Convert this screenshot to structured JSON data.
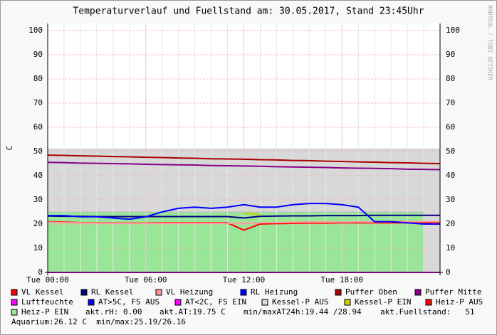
{
  "chart_data": {
    "type": "line",
    "title": "Temperaturverlauf und Fuellstand am: 30.05.2017, Stand 23:45Uhr",
    "y_label": "C",
    "watermark": "RRDTOOL / TOBI OETIKER",
    "x": [
      0,
      1,
      2,
      3,
      4,
      5,
      6,
      7,
      8,
      9,
      10,
      11,
      12,
      13,
      14,
      15,
      16,
      17,
      18,
      19,
      20,
      21,
      22,
      23,
      24
    ],
    "xlim": [
      0,
      24
    ],
    "xticks": [
      {
        "value": 0,
        "label": "Tue 00:00"
      },
      {
        "value": 6,
        "label": "Tue 06:00"
      },
      {
        "value": 12,
        "label": "Tue 12:00"
      },
      {
        "value": 18,
        "label": "Tue 18:00"
      }
    ],
    "ylim": [
      0,
      100
    ],
    "yticks": [
      0,
      10,
      20,
      30,
      40,
      50,
      60,
      70,
      80,
      90,
      100
    ],
    "grid": true,
    "series": [
      {
        "name": "VL Kessel",
        "color": "#ff0000",
        "kind": "line",
        "values": [
          21,
          20.8,
          20.6,
          20.5,
          20.4,
          20.4,
          20.4,
          20.5,
          20.5,
          20.5,
          20.5,
          20.5,
          17.5,
          20,
          20.2,
          20.3,
          20.4,
          20.4,
          20.5,
          20.5,
          20.5,
          20.5,
          20.5,
          20.5,
          20.5
        ]
      },
      {
        "name": "RL Kessel",
        "color": "#000080",
        "kind": "line",
        "values": [
          23.3,
          23.2,
          23.2,
          23.1,
          23.1,
          23.1,
          23.1,
          23.1,
          23.1,
          23.1,
          23.1,
          23.1,
          22.5,
          23.2,
          23.3,
          23.4,
          23.4,
          23.5,
          23.5,
          23.5,
          23.6,
          23.6,
          23.6,
          23.6,
          23.6
        ]
      },
      {
        "name": "VL Heizung",
        "color": "#ff9999",
        "kind": "line",
        "values": [
          20.8,
          20.6,
          20.5,
          20.4,
          20.3,
          20.3,
          20.3,
          20.3,
          20.3,
          20.3,
          20.3,
          20.3,
          20.3,
          20.5,
          20.6,
          20.7,
          20.8,
          20.8,
          20.8,
          20.9,
          20.9,
          21,
          21,
          21,
          21
        ]
      },
      {
        "name": "RL Heizung",
        "color": "#0000ff",
        "kind": "line",
        "values": [
          23.5,
          23.5,
          23,
          23,
          22.5,
          22,
          23,
          25,
          26.5,
          27,
          26.5,
          27,
          28,
          27,
          27,
          28,
          28.5,
          28.5,
          28,
          27,
          21,
          21,
          20.5,
          20,
          20
        ]
      },
      {
        "name": "Puffer Oben",
        "color": "#aa0000",
        "kind": "line",
        "values": [
          48.5,
          48.4,
          48.2,
          48.1,
          47.9,
          47.8,
          47.6,
          47.5,
          47.3,
          47.2,
          47,
          46.9,
          46.8,
          46.6,
          46.5,
          46.3,
          46.2,
          46,
          45.9,
          45.7,
          45.6,
          45.4,
          45.3,
          45.1,
          45
        ]
      },
      {
        "name": "Puffer Mitte",
        "color": "#880088",
        "kind": "line",
        "values": [
          45.5,
          45.4,
          45.2,
          45.1,
          45,
          44.9,
          44.7,
          44.6,
          44.5,
          44.4,
          44.2,
          44.1,
          44,
          43.9,
          43.7,
          43.6,
          43.5,
          43.4,
          43.2,
          43.1,
          43,
          42.9,
          42.7,
          42.6,
          42.5
        ]
      },
      {
        "name": "Luftfeuchte",
        "color": "#ff00ff",
        "kind": "line",
        "values": [
          0,
          0,
          0,
          0,
          0,
          0,
          0,
          0,
          0,
          0,
          0,
          0,
          0,
          0,
          0,
          0,
          0,
          0,
          0,
          0,
          0,
          0,
          0,
          0,
          0
        ]
      },
      {
        "name": "AT>5C, FS AUS",
        "color": "#0000ff",
        "kind": "line",
        "values": [
          null,
          null,
          null,
          null,
          null,
          null,
          null,
          null,
          null,
          null,
          null,
          null,
          null,
          null,
          null,
          null,
          null,
          null,
          null,
          null,
          null,
          null,
          null,
          null,
          null
        ]
      },
      {
        "name": "AT<2C, FS EIN",
        "color": "#ff00ff",
        "kind": "line",
        "values": [
          null,
          null,
          null,
          null,
          null,
          null,
          null,
          null,
          null,
          null,
          null,
          null,
          null,
          null,
          null,
          null,
          null,
          null,
          null,
          null,
          null,
          null,
          null,
          null,
          null
        ]
      },
      {
        "name": "Kessel-P AUS",
        "color": "#d8d8d8",
        "kind": "area",
        "values": [
          51,
          51,
          51,
          51,
          51,
          51,
          51,
          51,
          51,
          51,
          51,
          51,
          51,
          51,
          51,
          51,
          51,
          51,
          51,
          51,
          51,
          51,
          51,
          51,
          51
        ]
      },
      {
        "name": "Kessel-P EIN",
        "color": "#cccc00",
        "kind": "line",
        "values": [
          null,
          null,
          null,
          null,
          null,
          null,
          null,
          null,
          null,
          null,
          null,
          null,
          24.5,
          24,
          null,
          null,
          null,
          null,
          null,
          null,
          null,
          null,
          null,
          null,
          null
        ]
      },
      {
        "name": "Heiz-P AUS",
        "color": "#ff0000",
        "kind": "line",
        "values": [
          null,
          null,
          null,
          null,
          null,
          null,
          null,
          null,
          null,
          null,
          null,
          null,
          null,
          null,
          null,
          null,
          null,
          null,
          null,
          null,
          null,
          null,
          null,
          null,
          null
        ]
      },
      {
        "name": "Heiz-P EIN",
        "color": "#99e699",
        "kind": "area",
        "values": [
          25,
          25,
          25,
          25,
          25,
          25,
          25,
          25,
          25,
          25,
          25,
          25,
          25,
          25,
          25,
          25,
          25,
          25,
          25,
          25,
          25,
          25,
          25,
          25,
          null
        ]
      }
    ],
    "comments": [
      "akt.rH: 0.00",
      "akt.AT:19.75 C",
      "min/maxAT24h:19.44 /28.94",
      "akt.Fuellstand:   51",
      "Aquarium:26.12 C  min/max:25.19/26.16"
    ]
  }
}
